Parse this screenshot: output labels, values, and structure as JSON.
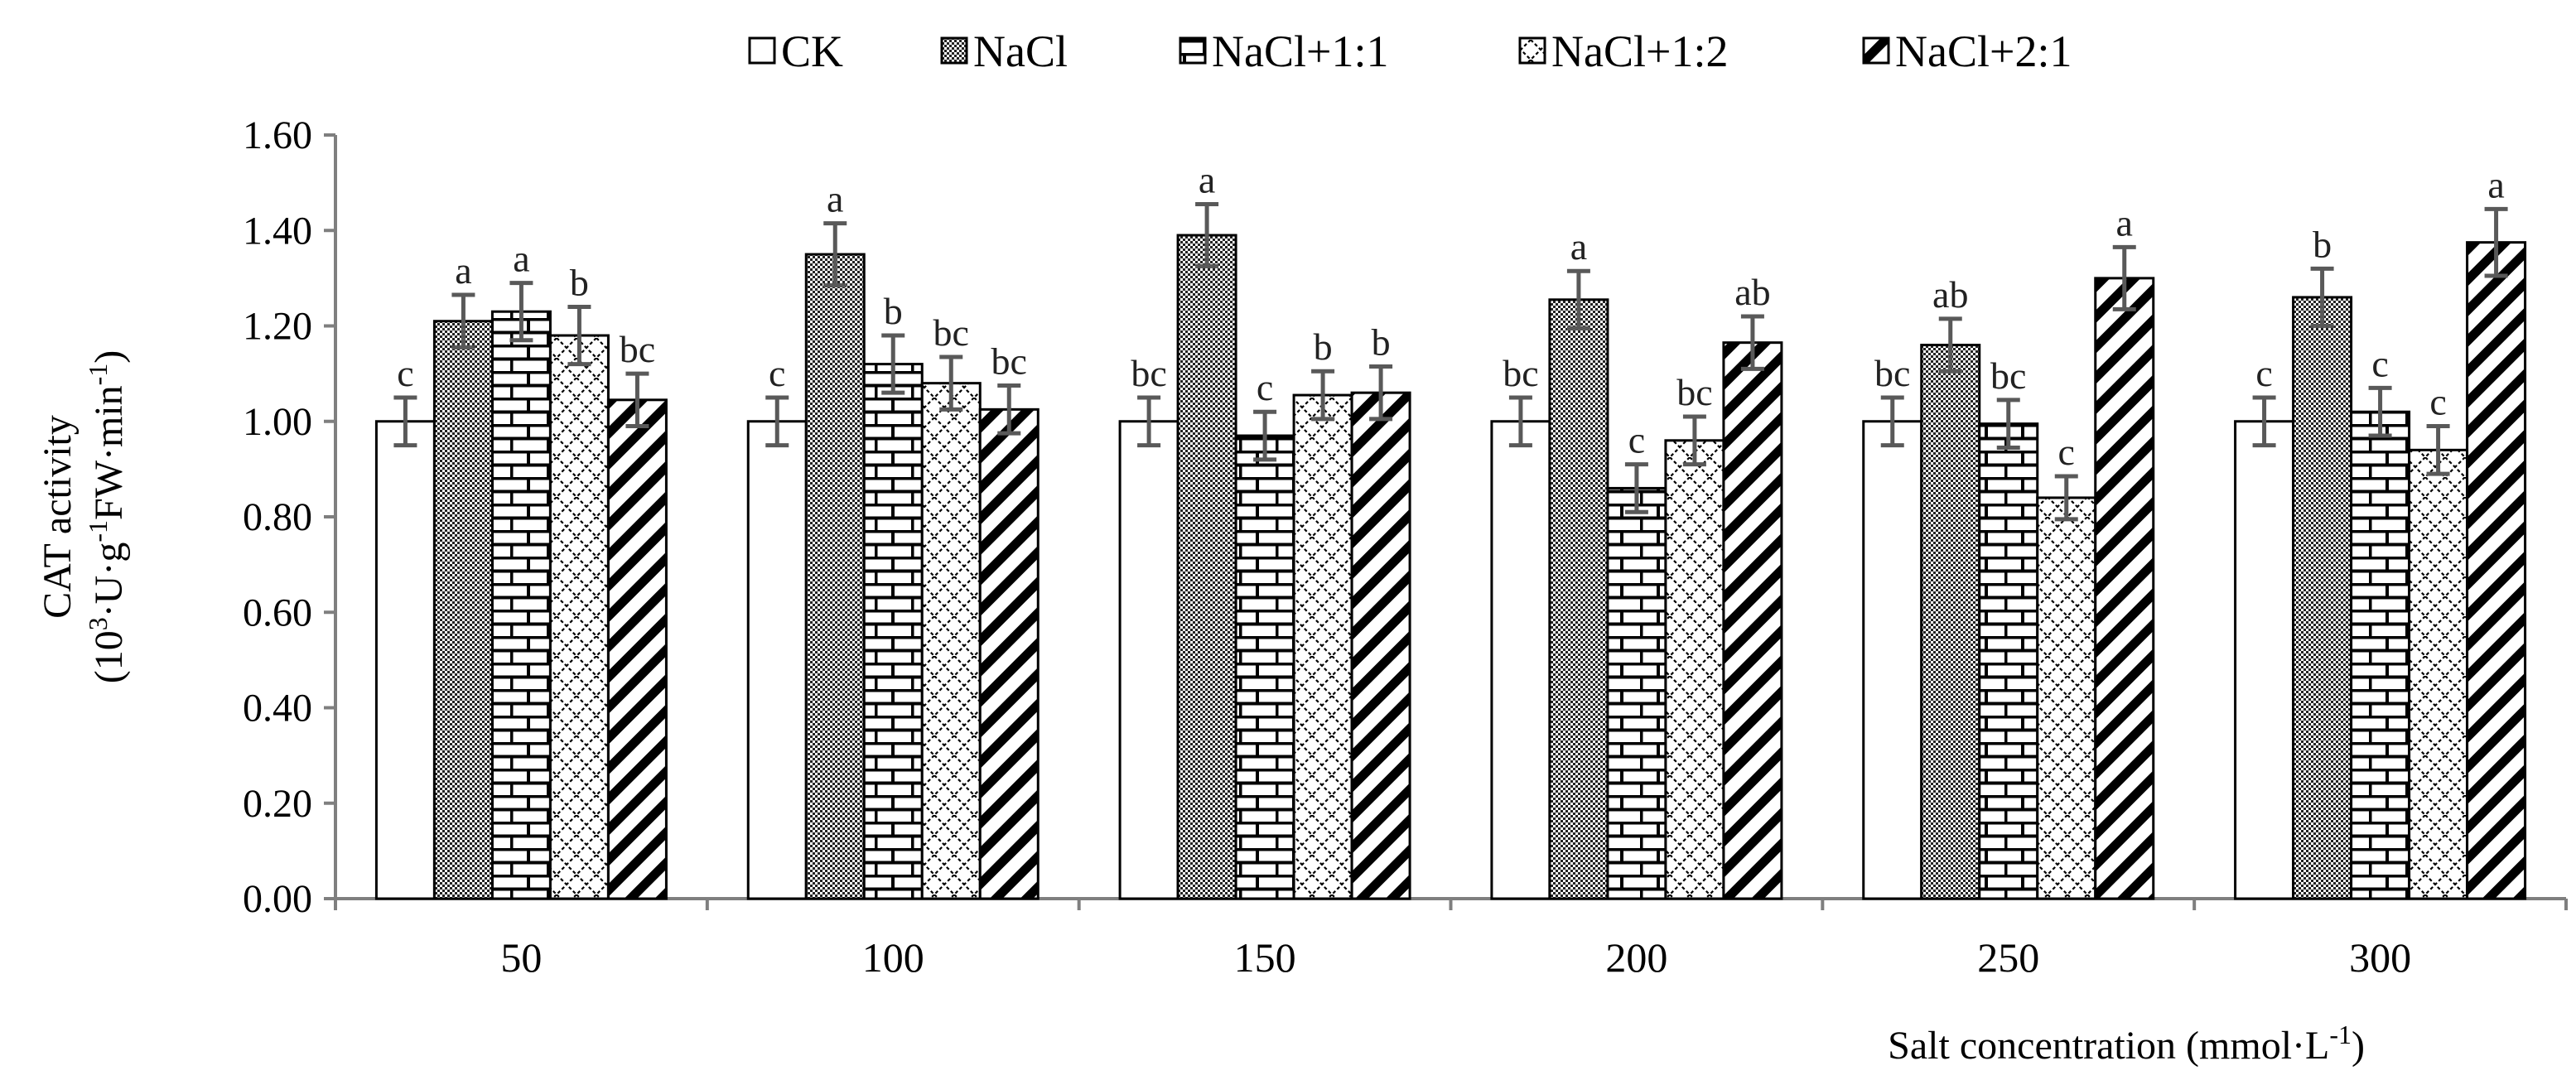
{
  "chart_data": {
    "type": "bar",
    "title": "",
    "xlabel": "Salt concentration (mmol·L",
    "xlabel_sup": "-1",
    "xlabel_end": ")",
    "ylabel_line1": "CAT activity",
    "ylabel_line2": {
      "p1": "(10",
      "s1": "3",
      "p2": "·U·g",
      "s2": "-1",
      "p3": "FW·min",
      "s3": "-1",
      "p4": ")"
    },
    "ylim": [
      0,
      1.6
    ],
    "y_ticks": [
      "0.00",
      "0.20",
      "0.40",
      "0.60",
      "0.80",
      "1.00",
      "1.20",
      "1.40",
      "1.60"
    ],
    "grid": false,
    "legend_position": "top",
    "categories": [
      "50",
      "100",
      "150",
      "200",
      "250",
      "300"
    ],
    "series": [
      {
        "name": "CK",
        "pattern": "solid-white",
        "values": [
          1.0,
          1.0,
          1.0,
          1.0,
          1.0,
          1.0
        ],
        "errors": [
          0.05,
          0.05,
          0.05,
          0.05,
          0.05,
          0.05
        ],
        "labels": [
          "c",
          "c",
          "bc",
          "bc",
          "bc",
          "c"
        ]
      },
      {
        "name": "NaCl",
        "pattern": "dense-checker",
        "values": [
          1.21,
          1.35,
          1.39,
          1.255,
          1.16,
          1.26
        ],
        "errors": [
          0.055,
          0.065,
          0.065,
          0.06,
          0.055,
          0.06
        ],
        "labels": [
          "a",
          "a",
          "a",
          "a",
          "ab",
          "b"
        ]
      },
      {
        "name": "NaCl+1:1",
        "pattern": "brick",
        "values": [
          1.23,
          1.12,
          0.97,
          0.86,
          0.995,
          1.02
        ],
        "errors": [
          0.06,
          0.06,
          0.05,
          0.05,
          0.05,
          0.05
        ],
        "labels": [
          "a",
          "b",
          "c",
          "c",
          "bc",
          "c"
        ]
      },
      {
        "name": "NaCl+1:2",
        "pattern": "diamond-lattice",
        "values": [
          1.18,
          1.08,
          1.055,
          0.96,
          0.84,
          0.94
        ],
        "errors": [
          0.06,
          0.055,
          0.05,
          0.05,
          0.045,
          0.05
        ],
        "labels": [
          "b",
          "bc",
          "b",
          "bc",
          "c",
          "c"
        ]
      },
      {
        "name": "NaCl+2:1",
        "pattern": "wide-diagonal",
        "values": [
          1.045,
          1.025,
          1.06,
          1.165,
          1.3,
          1.375
        ],
        "errors": [
          0.055,
          0.05,
          0.055,
          0.055,
          0.065,
          0.07
        ],
        "labels": [
          "bc",
          "bc",
          "b",
          "ab",
          "a",
          "a"
        ]
      }
    ]
  }
}
